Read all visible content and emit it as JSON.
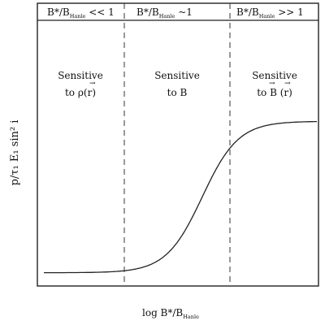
{
  "header": {
    "regimes": [
      {
        "main": "B",
        "sub": "Hanle",
        "rest": "<< 1"
      },
      {
        "main": "B",
        "sub": "Hanle",
        "rest": "~1"
      },
      {
        "main": "B",
        "sub": "Hanle",
        "rest": ">> 1"
      }
    ]
  },
  "regions": [
    {
      "line1": "Sensitive",
      "line2": "to ρ(r)"
    },
    {
      "line1": "Sensitive",
      "line2": "to B"
    },
    {
      "line1": "Sensitive",
      "line2": "to B (r)"
    }
  ],
  "axes": {
    "ylabel": "p/τ₁ E₁ sin² i",
    "xlabel_main": "log B",
    "xlabel_sub": "Hanle"
  },
  "curve": {
    "type": "sigmoid",
    "low_level": 0.05,
    "high_level": 0.62,
    "midpoint_fraction": 0.58
  }
}
